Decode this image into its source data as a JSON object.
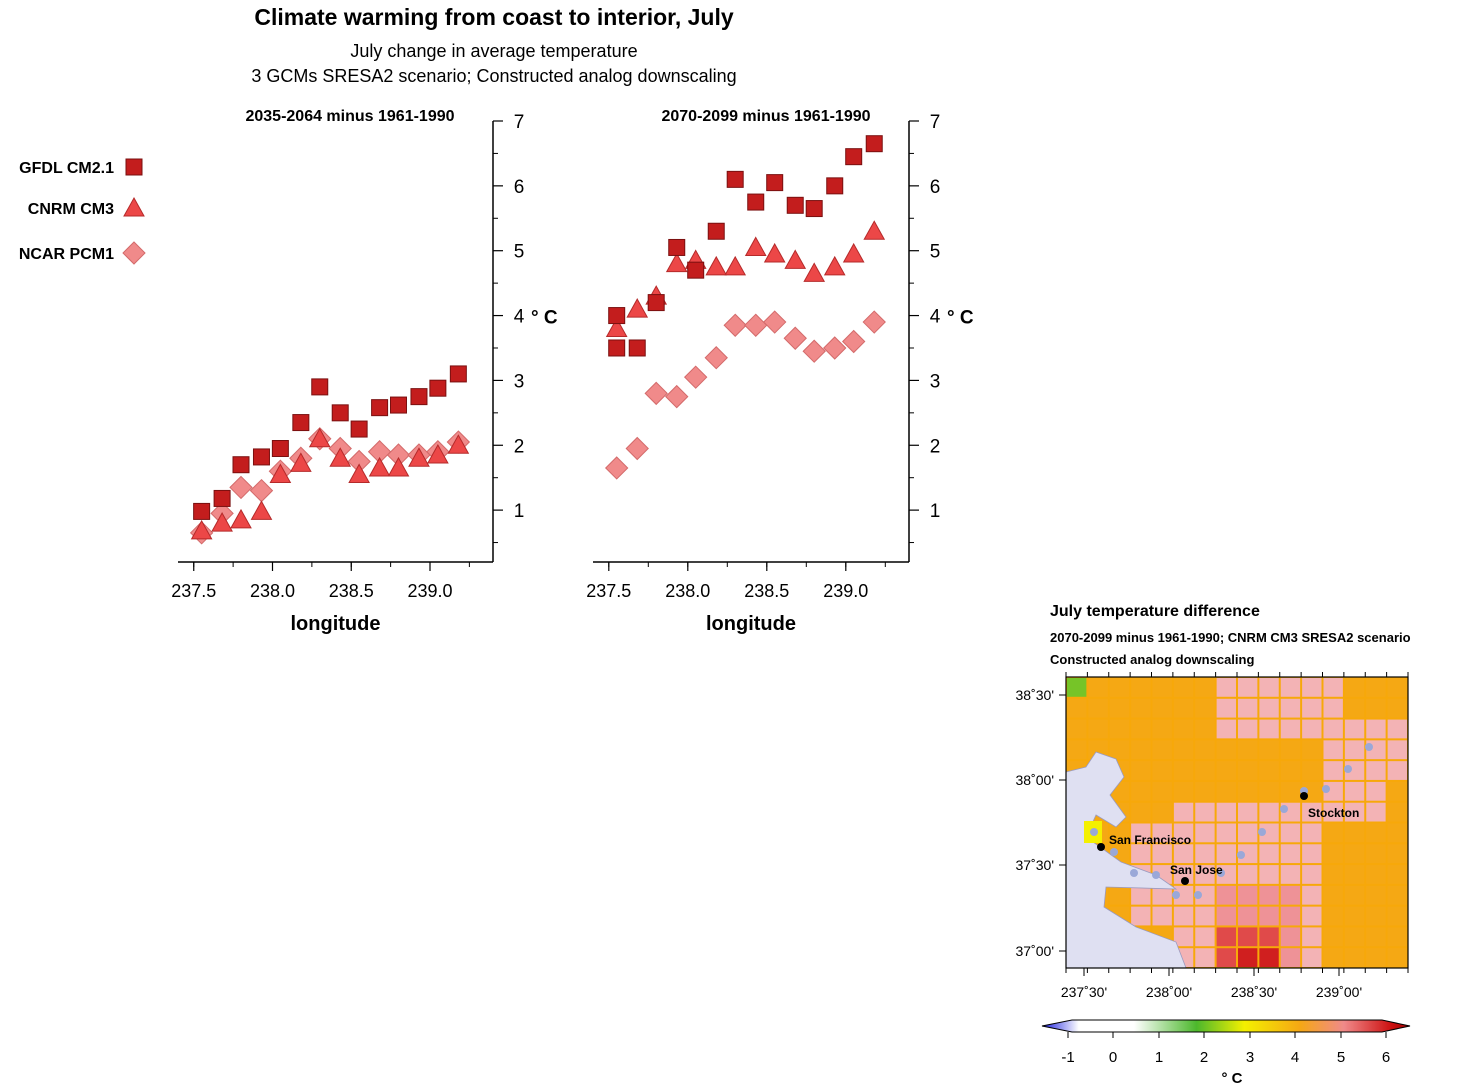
{
  "title": "Climate warming from coast to interior, July",
  "subtitle": "July change in average temperature",
  "subtitle2": "3 GCMs  SRESA2 scenario; Constructed analog downscaling",
  "legend": [
    {
      "label": "GFDL CM2.1",
      "marker": "square",
      "color": "#c31d1d"
    },
    {
      "label": "CNRM CM3",
      "marker": "triangle",
      "color": "#ec4747"
    },
    {
      "label": "NCAR PCM1",
      "marker": "diamond",
      "color": "#f08a8a"
    }
  ],
  "map": {
    "title": "July temperature difference",
    "subtitle": "2070-2099 minus 1961-1990; CNRM CM3 SRESA2 scenario",
    "subtitle2": "Constructed analog downscaling",
    "lat_labels": [
      "38˚30'",
      "38˚00'",
      "37˚30'",
      "37˚00'"
    ],
    "lon_labels": [
      "237˚30'",
      "238˚00'",
      "238˚30'",
      "239˚00'"
    ],
    "cities": [
      "San Francisco",
      "San Jose",
      "Stockton"
    ],
    "colorbar_ticks": [
      "-1",
      "0",
      "1",
      "2",
      "3",
      "4",
      "5",
      "6"
    ],
    "colorbar_unit": "° C"
  },
  "chart_data": [
    {
      "type": "scatter",
      "title": "2035-2064 minus 1961-1990",
      "xlabel": "longitude",
      "ylabel": "° C",
      "xlim": [
        237.4,
        239.4
      ],
      "ylim": [
        0.2,
        7
      ],
      "xticks": [
        237.5,
        238.0,
        238.5,
        239.0
      ],
      "yticks": [
        1,
        2,
        3,
        4,
        5,
        6,
        7
      ],
      "series": [
        {
          "name": "GFDL CM2.1",
          "marker": "square",
          "x": [
            237.55,
            237.68,
            237.8,
            237.93,
            238.05,
            238.18,
            238.3,
            238.43,
            238.55,
            238.68,
            238.8,
            238.93,
            239.05,
            239.18
          ],
          "y": [
            0.98,
            1.18,
            1.7,
            1.82,
            1.95,
            2.35,
            2.9,
            2.5,
            2.25,
            2.58,
            2.62,
            2.75,
            2.88,
            3.1
          ]
        },
        {
          "name": "CNRM CM3",
          "marker": "triangle",
          "x": [
            237.55,
            237.68,
            237.8,
            237.93,
            238.05,
            238.18,
            238.3,
            238.43,
            238.55,
            238.68,
            238.8,
            238.93,
            239.05,
            239.18
          ],
          "y": [
            0.68,
            0.8,
            0.85,
            0.98,
            1.55,
            1.72,
            2.1,
            1.8,
            1.55,
            1.65,
            1.65,
            1.8,
            1.85,
            2.0
          ]
        },
        {
          "name": "NCAR PCM1",
          "marker": "diamond",
          "x": [
            237.55,
            237.68,
            237.8,
            237.93,
            238.05,
            238.18,
            238.3,
            238.43,
            238.55,
            238.68,
            238.8,
            238.93,
            239.05,
            239.18
          ],
          "y": [
            0.65,
            0.95,
            1.35,
            1.3,
            1.6,
            1.8,
            2.1,
            1.95,
            1.75,
            1.9,
            1.85,
            1.85,
            1.9,
            2.05
          ]
        }
      ]
    },
    {
      "type": "scatter",
      "title": "2070-2099 minus 1961-1990",
      "xlabel": "longitude",
      "ylabel": "° C",
      "xlim": [
        237.4,
        239.4
      ],
      "ylim": [
        0.2,
        7
      ],
      "xticks": [
        237.5,
        238.0,
        238.5,
        239.0
      ],
      "yticks": [
        1,
        2,
        3,
        4,
        5,
        6,
        7
      ],
      "series": [
        {
          "name": "GFDL CM2.1",
          "marker": "square",
          "x": [
            237.55,
            237.55,
            237.68,
            237.8,
            237.93,
            238.05,
            238.18,
            238.3,
            238.43,
            238.55,
            238.68,
            238.8,
            238.93,
            239.05,
            239.18
          ],
          "y": [
            4.0,
            3.5,
            3.5,
            4.2,
            5.05,
            4.7,
            5.3,
            6.1,
            5.75,
            6.05,
            5.7,
            5.65,
            6.0,
            6.45,
            6.65
          ]
        },
        {
          "name": "CNRM CM3",
          "marker": "triangle",
          "x": [
            237.55,
            237.68,
            237.8,
            237.93,
            238.05,
            238.18,
            238.3,
            238.43,
            238.55,
            238.68,
            238.8,
            238.93,
            239.05,
            239.18
          ],
          "y": [
            3.8,
            4.1,
            4.3,
            4.8,
            4.85,
            4.75,
            4.75,
            5.05,
            4.95,
            4.85,
            4.65,
            4.75,
            4.95,
            5.3
          ]
        },
        {
          "name": "NCAR PCM1",
          "marker": "diamond",
          "x": [
            237.55,
            237.68,
            237.8,
            237.93,
            238.05,
            238.18,
            238.3,
            238.43,
            238.55,
            238.68,
            238.8,
            238.93,
            239.05,
            239.18
          ],
          "y": [
            1.65,
            1.95,
            2.8,
            2.75,
            3.05,
            3.35,
            3.85,
            3.85,
            3.9,
            3.65,
            3.45,
            3.5,
            3.6,
            3.9
          ]
        }
      ]
    }
  ]
}
